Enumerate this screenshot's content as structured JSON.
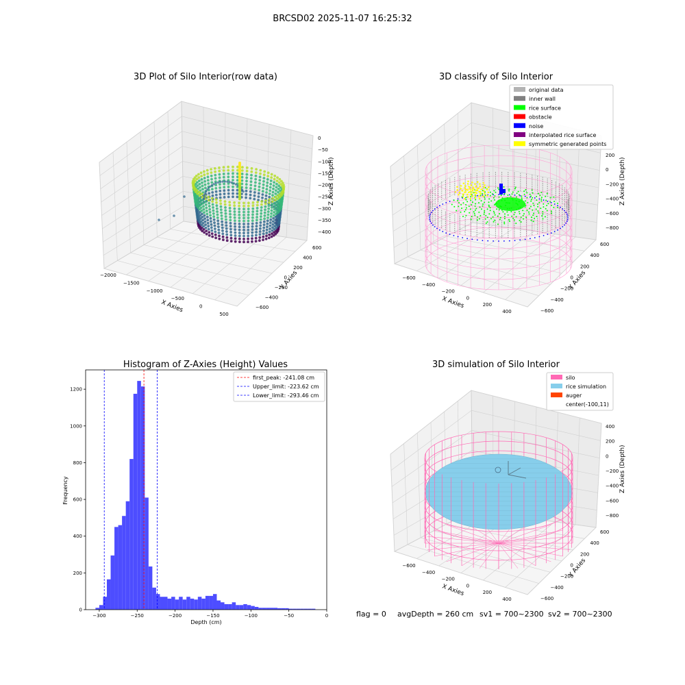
{
  "figure": {
    "suptitle": "BRCSD02 2025-11-07 16:25:32",
    "footer": {
      "flag": "flag = 0",
      "avg_depth": "avgDepth = 260 cm",
      "sv1": "sv1 = 700~2300",
      "sv2": "sv2 = 700~2300"
    }
  },
  "chart_data": [
    {
      "type": "scatter",
      "projection": "3d",
      "title": "3D Plot of Silo Interior(row data)",
      "xlabel": "X Axies",
      "ylabel": "Y Axies",
      "zlabel": "Z Axies (Depth)",
      "x_ticks": [
        "−2000",
        "−1500",
        "−1000",
        "−500",
        "0",
        "500"
      ],
      "y_ticks": [
        "−600",
        "−400",
        "−200",
        "0",
        "200",
        "400",
        "600"
      ],
      "z_ticks": [
        "0",
        "−50",
        "−100",
        "−150",
        "−200",
        "−250",
        "−300",
        "−350",
        "−400"
      ],
      "xlim": [
        -2100,
        600
      ],
      "ylim": [
        -650,
        650
      ],
      "zlim": [
        -420,
        0
      ],
      "colormap": "viridis",
      "colors": [
        "#440154",
        "#31688e",
        "#35b779",
        "#b5de2b",
        "#fde725"
      ],
      "grid": true
    },
    {
      "type": "scatter",
      "projection": "3d",
      "title": "3D classify of Silo Interior",
      "xlabel": "X Axies",
      "ylabel": "Y Axies",
      "zlabel": "Z Axies (Depth)",
      "x_ticks": [
        "−600",
        "−400",
        "−200",
        "0",
        "200",
        "400"
      ],
      "y_ticks": [
        "−600",
        "−400",
        "−200",
        "0",
        "200",
        "400",
        "600"
      ],
      "z_ticks": [
        "200",
        "0",
        "−200",
        "−400",
        "−600",
        "−800"
      ],
      "legend_position": "top-right",
      "legend": [
        {
          "label": "original data",
          "color": "#b3b3b3"
        },
        {
          "label": "inner wall",
          "color": "#808080"
        },
        {
          "label": "rice surface",
          "color": "#00ff00"
        },
        {
          "label": "obstacle",
          "color": "#ff0000"
        },
        {
          "label": "noise",
          "color": "#0000ff"
        },
        {
          "label": "interpolated rice surface",
          "color": "#800080"
        },
        {
          "label": "symmetric generated points",
          "color": "#ffff00"
        }
      ],
      "silo_color": "#ff9fd4",
      "grid": true
    },
    {
      "type": "bar",
      "title": "Histogram of Z-Axies (Height) Values",
      "xlabel": "Depth (cm)",
      "ylabel": "Frequency",
      "xlim": [
        -318,
        0
      ],
      "ylim": [
        0,
        1305
      ],
      "x_ticks": [
        -300,
        -250,
        -200,
        -150,
        -100,
        -50,
        0
      ],
      "y_ticks": [
        0,
        200,
        400,
        600,
        800,
        1000,
        1200
      ],
      "bin_width": 5,
      "bins_start": [
        -305,
        -300,
        -295,
        -290,
        -285,
        -280,
        -275,
        -270,
        -265,
        -260,
        -255,
        -250,
        -245,
        -240,
        -235,
        -230,
        -225,
        -220,
        -215,
        -210,
        -205,
        -200,
        -195,
        -190,
        -185,
        -180,
        -175,
        -170,
        -165,
        -160,
        -155,
        -150,
        -145,
        -140,
        -135,
        -130,
        -125,
        -120,
        -115,
        -110,
        -105,
        -100,
        -95,
        -90,
        -85,
        -80,
        -75,
        -70,
        -65,
        -60,
        -55,
        -50,
        -45,
        -40,
        -35,
        -30,
        -25,
        -20
      ],
      "values": [
        10,
        25,
        70,
        165,
        295,
        450,
        460,
        510,
        590,
        820,
        1175,
        1245,
        1215,
        610,
        235,
        120,
        85,
        70,
        70,
        60,
        70,
        55,
        70,
        55,
        70,
        60,
        55,
        70,
        60,
        75,
        75,
        85,
        50,
        40,
        30,
        30,
        40,
        25,
        25,
        30,
        25,
        20,
        15,
        10,
        10,
        10,
        10,
        10,
        8,
        8,
        8,
        5,
        5,
        5,
        5,
        5,
        5,
        5
      ],
      "bar_color": "#4d4dff",
      "lines": [
        {
          "label": "first_peak: -241.08 cm",
          "x": -241.08,
          "color": "#ff0000"
        },
        {
          "label": "Upper_limit: -223.62 cm",
          "x": -223.62,
          "color": "#0000ff"
        },
        {
          "label": "Lower_limit: -293.46 cm",
          "x": -293.46,
          "color": "#0000ff"
        }
      ],
      "legend_position": "top-right"
    },
    {
      "type": "scatter",
      "projection": "3d",
      "title": "3D simulation of Silo Interior",
      "xlabel": "X Axies",
      "ylabel": "Y Axies",
      "zlabel": "Z Axies (Depth)",
      "x_ticks": [
        "−600",
        "−400",
        "−200",
        "0",
        "200",
        "400"
      ],
      "y_ticks": [
        "−600",
        "−400",
        "−200",
        "0",
        "200",
        "400",
        "600"
      ],
      "z_ticks": [
        "400",
        "200",
        "0",
        "−200",
        "−400",
        "−600",
        "−800"
      ],
      "legend_position": "top-right",
      "legend": [
        {
          "label": "silo",
          "color": "#ff69b4"
        },
        {
          "label": "rice simulation",
          "color": "#87ceeb"
        },
        {
          "label": "auger",
          "color": "#ff4500"
        },
        {
          "label": "center(-100,11)",
          "color": ""
        }
      ],
      "grid": true
    }
  ]
}
